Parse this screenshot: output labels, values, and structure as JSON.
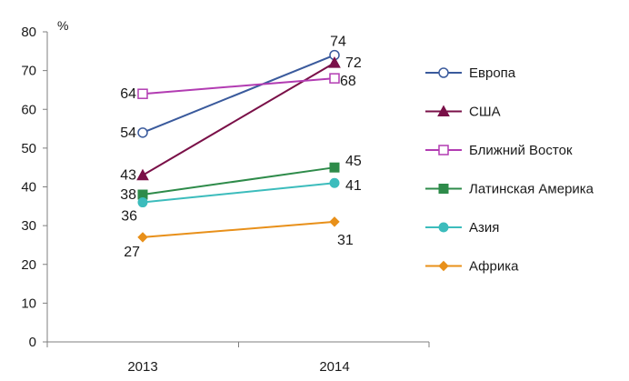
{
  "chart_data": {
    "type": "line",
    "x": [
      "2013",
      "2014"
    ],
    "ylabel": "%",
    "ylim": [
      0,
      80
    ],
    "yticks": [
      0,
      10,
      20,
      30,
      40,
      50,
      60,
      70,
      80
    ],
    "grid": false,
    "legend_position": "right",
    "series": [
      {
        "name": "Европа",
        "values": [
          54,
          74
        ],
        "color": "#3a5a9c",
        "marker": "circle-open"
      },
      {
        "name": "США",
        "values": [
          43,
          72
        ],
        "color": "#7a1048",
        "marker": "triangle"
      },
      {
        "name": "Ближний Восток",
        "values": [
          64,
          68
        ],
        "color": "#b23cb2",
        "marker": "square-open"
      },
      {
        "name": "Латинская Америка",
        "values": [
          38,
          45
        ],
        "color": "#2e8b4a",
        "marker": "square"
      },
      {
        "name": "Азия",
        "values": [
          36,
          41
        ],
        "color": "#3cbcbc",
        "marker": "circle"
      },
      {
        "name": "Африка",
        "values": [
          27,
          31
        ],
        "color": "#e8901a",
        "marker": "diamond"
      }
    ]
  }
}
